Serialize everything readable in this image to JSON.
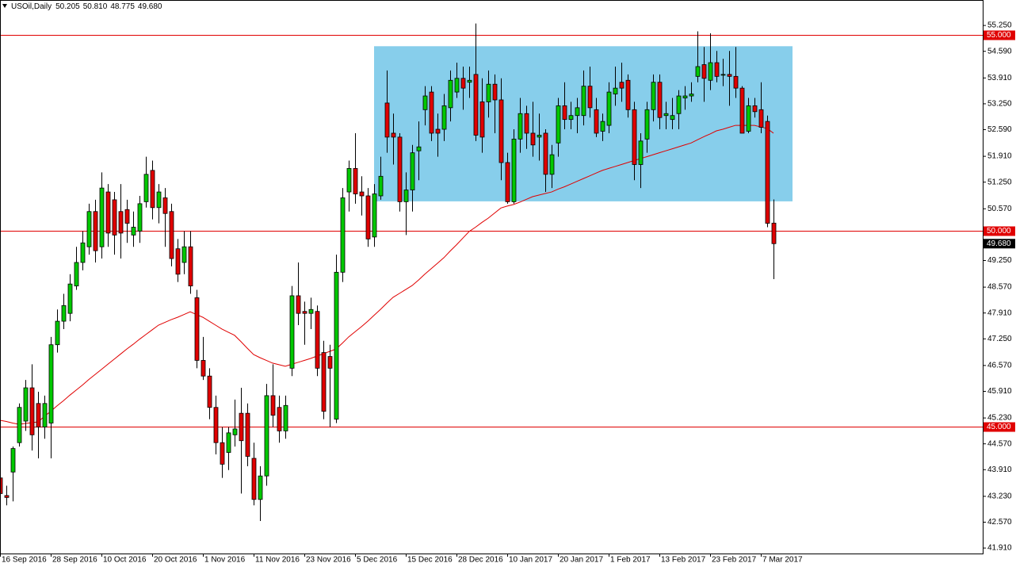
{
  "chart_data": {
    "type": "candlestick",
    "title": "USOil,Daily",
    "quote": [
      "50.205",
      "50.810",
      "48.775",
      "49.680"
    ],
    "categories": [
      "16 Sep 2016",
      null,
      null,
      null,
      null,
      null,
      null,
      null,
      "28 Sep 2016",
      null,
      null,
      null,
      null,
      null,
      null,
      null,
      "10 Oct 2016",
      null,
      null,
      null,
      null,
      null,
      null,
      null,
      "20 Oct 2016",
      null,
      null,
      null,
      null,
      null,
      null,
      null,
      "1 Nov 2016",
      null,
      null,
      null,
      null,
      null,
      null,
      null,
      "11 Nov 2016",
      null,
      null,
      null,
      null,
      null,
      null,
      null,
      "23 Nov 2016",
      null,
      null,
      null,
      null,
      null,
      null,
      null,
      "5 Dec 2016",
      null,
      null,
      null,
      null,
      null,
      null,
      null,
      "15 Dec 2016",
      null,
      null,
      null,
      null,
      null,
      null,
      null,
      "28 Dec 2016",
      null,
      null,
      null,
      null,
      null,
      null,
      null,
      "10 Jan 2017",
      null,
      null,
      null,
      null,
      null,
      null,
      null,
      "20 Jan 2017",
      null,
      null,
      null,
      null,
      null,
      null,
      null,
      "1 Feb 2017",
      null,
      null,
      null,
      null,
      null,
      null,
      null,
      "13 Feb 2017",
      null,
      null,
      null,
      null,
      null,
      null,
      null,
      "23 Feb 2017",
      null,
      null,
      null,
      null,
      null,
      null,
      null,
      "7 Mar 2017",
      null,
      null
    ],
    "open": [
      43.7,
      43.25,
      43.85,
      44.6,
      45.15,
      46.0,
      45.6,
      45.0,
      45.1,
      47.1,
      47.7,
      47.9,
      48.6,
      49.2,
      49.6,
      50.5,
      49.6,
      51.0,
      50.8,
      50.5,
      50.55,
      49.9,
      50.0,
      50.75,
      51.55,
      50.6,
      50.85,
      50.5,
      49.55,
      49.2,
      49.6,
      48.3,
      46.7,
      46.3,
      45.5,
      44.6,
      44.35,
      44.8,
      45.35,
      45.35,
      44.2,
      43.15,
      43.75,
      45.8,
      45.5,
      44.9,
      46.5,
      48.35,
      47.95,
      47.9,
      47.95,
      46.9,
      46.8,
      45.2,
      48.95,
      51.0,
      51.6,
      51.0,
      50.9,
      49.85,
      50.9,
      53.27,
      52.5,
      52.4,
      50.75,
      51.05,
      52.05,
      53.1,
      53.55,
      52.6,
      52.6,
      53.15,
      53.55,
      53.9,
      53.8,
      54.0,
      53.3,
      53.3,
      53.75,
      53.35,
      51.75,
      50.75,
      52.35,
      53.0,
      52.5,
      52.4,
      52.5,
      51.45,
      52.25,
      53.2,
      52.85,
      52.95,
      52.95,
      53.7,
      53.1,
      52.55,
      52.7,
      53.5,
      53.8,
      53.85,
      53.1,
      51.7,
      52.35,
      53.1,
      53.8,
      52.95,
      52.85,
      53.0,
      53.4,
      53.45,
      53.95,
      54.25,
      53.85,
      54.3,
      54.0,
      54.0,
      53.95,
      53.65,
      52.55,
      53.2,
      53.1,
      52.8,
      50.205
    ],
    "high": [
      43.9,
      43.5,
      44.5,
      45.6,
      46.2,
      46.6,
      45.9,
      45.8,
      47.3,
      48.0,
      48.4,
      48.9,
      49.6,
      50.0,
      50.7,
      50.8,
      51.5,
      51.2,
      51.0,
      51.2,
      50.8,
      50.5,
      50.9,
      51.9,
      51.8,
      51.2,
      51.1,
      50.7,
      49.8,
      50.0,
      50.0,
      48.5,
      47.3,
      46.5,
      45.8,
      45.0,
      45.0,
      45.7,
      46.0,
      45.6,
      44.6,
      44.0,
      46.1,
      46.6,
      45.8,
      45.8,
      48.6,
      49.2,
      48.2,
      48.3,
      48.1,
      47.2,
      47.1,
      49.4,
      51.1,
      51.8,
      52.5,
      51.4,
      51.1,
      51.2,
      51.9,
      54.1,
      53.0,
      52.5,
      51.5,
      52.2,
      52.8,
      53.7,
      53.7,
      53.0,
      53.5,
      54.1,
      54.3,
      54.2,
      54.2,
      55.3,
      53.9,
      54.1,
      54.0,
      53.9,
      52.0,
      52.6,
      53.4,
      53.2,
      53.3,
      53.0,
      52.6,
      52.2,
      53.4,
      53.8,
      53.3,
      53.4,
      54.1,
      54.2,
      53.4,
      53.0,
      53.8,
      54.2,
      54.3,
      54.0,
      53.3,
      52.5,
      53.3,
      54.0,
      54.0,
      53.3,
      53.4,
      53.6,
      53.7,
      53.8,
      55.1,
      54.7,
      55.05,
      54.6,
      54.4,
      54.6,
      54.7,
      53.7,
      53.4,
      53.4,
      53.8,
      52.95,
      50.81
    ],
    "low": [
      42.8,
      43.0,
      43.1,
      44.5,
      44.9,
      44.4,
      44.2,
      44.7,
      44.2,
      46.9,
      47.5,
      47.7,
      48.5,
      49.0,
      49.4,
      49.2,
      49.3,
      49.6,
      49.4,
      49.3,
      49.7,
      49.6,
      49.7,
      50.6,
      50.3,
      50.2,
      49.6,
      49.1,
      48.7,
      48.9,
      48.4,
      46.5,
      46.2,
      45.2,
      44.3,
      43.7,
      43.9,
      44.5,
      43.3,
      44.0,
      43.0,
      42.6,
      43.5,
      45.0,
      44.6,
      44.7,
      46.3,
      47.6,
      47.1,
      47.5,
      46.3,
      45.2,
      45.0,
      45.1,
      48.7,
      50.5,
      50.7,
      50.4,
      49.6,
      49.6,
      50.8,
      52.0,
      51.7,
      50.5,
      49.9,
      50.5,
      51.3,
      52.7,
      52.3,
      51.9,
      52.3,
      52.8,
      53.4,
      53.1,
      53.4,
      52.3,
      52.0,
      52.9,
      52.5,
      51.3,
      50.7,
      50.7,
      52.0,
      52.1,
      51.9,
      51.8,
      51.0,
      51.1,
      51.9,
      52.6,
      52.6,
      52.5,
      52.7,
      52.9,
      52.4,
      52.3,
      52.5,
      53.2,
      53.3,
      52.9,
      51.3,
      51.1,
      52.0,
      52.8,
      52.6,
      52.6,
      52.6,
      52.6,
      53.1,
      53.3,
      53.8,
      53.3,
      53.6,
      53.8,
      53.7,
      53.2,
      53.4,
      52.5,
      52.5,
      52.9,
      52.5,
      50.1,
      48.775
    ],
    "close": [
      43.3,
      43.2,
      44.45,
      45.5,
      46.0,
      44.8,
      45.0,
      45.6,
      47.1,
      47.7,
      48.1,
      48.65,
      49.2,
      49.7,
      50.5,
      49.5,
      51.1,
      49.95,
      49.9,
      49.95,
      50.2,
      50.1,
      50.7,
      51.45,
      50.6,
      51.0,
      50.45,
      49.3,
      48.9,
      49.6,
      48.6,
      46.7,
      46.3,
      45.5,
      44.6,
      44.05,
      44.85,
      44.95,
      44.65,
      44.25,
      43.15,
      43.75,
      45.8,
      45.3,
      44.9,
      45.55,
      48.35,
      47.9,
      47.9,
      48.0,
      46.5,
      45.4,
      46.5,
      48.95,
      50.85,
      51.6,
      50.95,
      50.9,
      49.8,
      50.95,
      51.4,
      52.4,
      52.4,
      50.75,
      51.05,
      52.0,
      52.15,
      53.45,
      52.5,
      52.5,
      53.2,
      53.85,
      53.9,
      53.65,
      53.85,
      52.45,
      52.4,
      53.75,
      53.35,
      51.75,
      50.75,
      52.35,
      53.0,
      52.5,
      52.2,
      52.45,
      51.45,
      51.95,
      53.2,
      52.85,
      52.95,
      53.15,
      53.7,
      53.15,
      52.5,
      52.8,
      53.55,
      53.65,
      53.65,
      53.1,
      51.7,
      52.3,
      53.1,
      53.8,
      52.9,
      53.0,
      52.95,
      53.45,
      53.45,
      53.5,
      54.2,
      53.9,
      54.3,
      53.95,
      54.0,
      53.95,
      53.65,
      52.5,
      53.2,
      53.05,
      52.65,
      50.2,
      49.68
    ],
    "up_color": "#00c800",
    "down_color": "#e00000",
    "moving_average": {
      "color": "#e00000",
      "values": [
        45.17,
        45.14,
        45.1,
        45.07,
        45.09,
        45.11,
        45.13,
        45.27,
        45.4,
        45.54,
        45.67,
        45.81,
        45.94,
        46.07,
        46.21,
        46.34,
        46.47,
        46.6,
        46.73,
        46.86,
        46.99,
        47.11,
        47.24,
        47.36,
        47.48,
        47.6,
        47.67,
        47.74,
        47.8,
        47.87,
        47.94,
        47.87,
        47.8,
        47.7,
        47.6,
        47.5,
        47.42,
        47.34,
        47.18,
        47.01,
        46.85,
        46.77,
        46.7,
        46.63,
        46.59,
        46.55,
        46.6,
        46.65,
        46.7,
        46.75,
        46.81,
        46.87,
        46.93,
        46.99,
        47.14,
        47.3,
        47.43,
        47.56,
        47.7,
        47.85,
        48.0,
        48.16,
        48.31,
        48.41,
        48.51,
        48.61,
        48.75,
        48.9,
        49.04,
        49.18,
        49.32,
        49.49,
        49.65,
        49.82,
        49.99,
        50.1,
        50.22,
        50.33,
        50.46,
        50.59,
        50.64,
        50.68,
        50.74,
        50.81,
        50.88,
        50.92,
        50.96,
        51.0,
        51.07,
        51.13,
        51.2,
        51.27,
        51.34,
        51.41,
        51.48,
        51.55,
        51.6,
        51.65,
        51.7,
        51.75,
        51.8,
        51.85,
        51.9,
        51.95,
        52.0,
        52.05,
        52.1,
        52.15,
        52.2,
        52.25,
        52.33,
        52.41,
        52.48,
        52.56,
        52.6,
        52.65,
        52.7,
        52.7,
        52.7,
        52.7,
        52.66,
        52.62,
        52.5
      ]
    },
    "zone": {
      "top": 54.72,
      "bottom": 50.76,
      "color": "#87ceeb"
    },
    "levels": [
      {
        "value": 55,
        "label": "55.000"
      },
      {
        "value": 50,
        "label": "50.000"
      },
      {
        "value": 45,
        "label": "45.000"
      }
    ],
    "level_color": "#e00000",
    "last_price": {
      "value": 49.68,
      "label": "49.680"
    },
    "ylim": [
      41.77,
      55.9
    ],
    "yticks": [
      {
        "value": 55.25,
        "label": "55.250"
      },
      {
        "value": 54.59,
        "label": "54.590"
      },
      {
        "value": 53.91,
        "label": "53.910"
      },
      {
        "value": 53.25,
        "label": "53.250"
      },
      {
        "value": 52.59,
        "label": "52.590"
      },
      {
        "value": 51.91,
        "label": "51.910"
      },
      {
        "value": 51.25,
        "label": "51.250"
      },
      {
        "value": 50.57,
        "label": "50.570"
      },
      {
        "value": 49.25,
        "label": "49.250"
      },
      {
        "value": 48.57,
        "label": "48.570"
      },
      {
        "value": 47.91,
        "label": "47.910"
      },
      {
        "value": 47.25,
        "label": "47.250"
      },
      {
        "value": 46.57,
        "label": "46.570"
      },
      {
        "value": 45.91,
        "label": "45.910"
      },
      {
        "value": 45.23,
        "label": "45.230"
      },
      {
        "value": 44.57,
        "label": "44.570"
      },
      {
        "value": 43.91,
        "label": "43.910"
      },
      {
        "value": 43.23,
        "label": "43.230"
      },
      {
        "value": 42.57,
        "label": "42.570"
      },
      {
        "value": 41.91,
        "label": "41.910"
      }
    ],
    "grid": false
  }
}
